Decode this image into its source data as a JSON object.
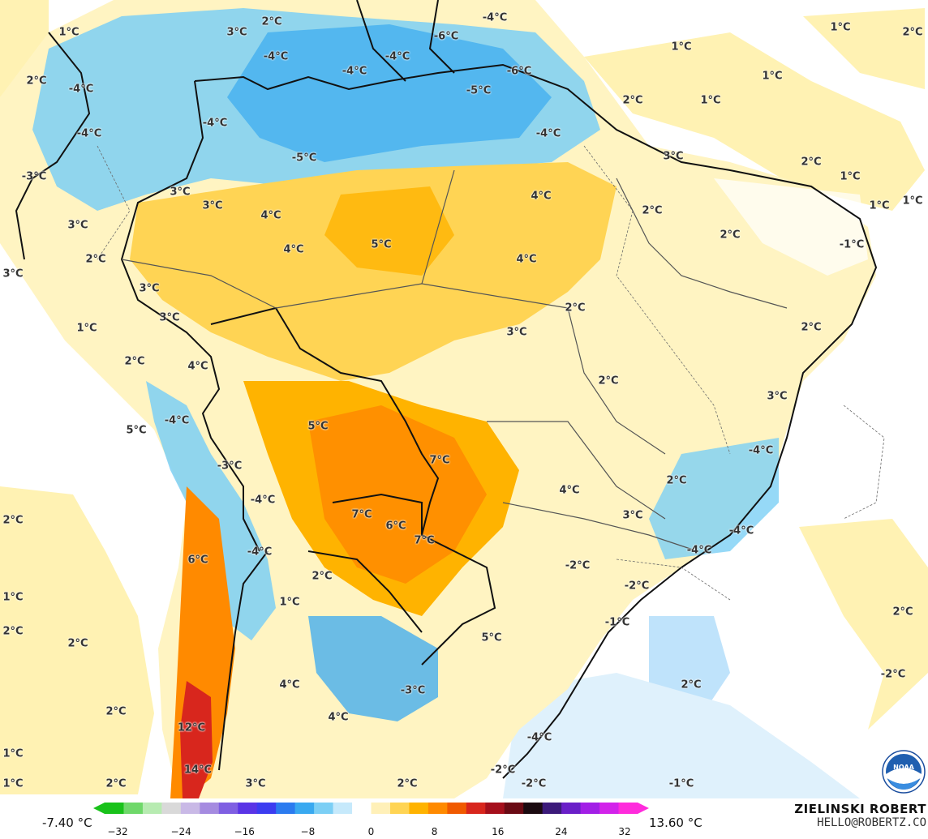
{
  "map": {
    "labels": [
      {
        "text": "1°C"
      },
      {
        "text": "2°C"
      },
      {
        "text": "3°C"
      },
      {
        "text": "-4°C"
      },
      {
        "text": "-4°C"
      },
      {
        "text": "-6°C"
      },
      {
        "text": "-4°C"
      },
      {
        "text": "-4°C"
      },
      {
        "text": "-5°C"
      },
      {
        "text": "-6°C"
      },
      {
        "text": "1°C"
      },
      {
        "text": "1°C"
      },
      {
        "text": "2°C"
      },
      {
        "text": "2°C"
      },
      {
        "text": "-4°C"
      },
      {
        "text": "-4°C"
      },
      {
        "text": "2°C"
      },
      {
        "text": "1°C"
      },
      {
        "text": "1°C"
      },
      {
        "text": "-4°C"
      },
      {
        "text": "-4°C"
      },
      {
        "text": "-5°C"
      },
      {
        "text": "2°C"
      },
      {
        "text": "-3°C"
      },
      {
        "text": "3°C"
      },
      {
        "text": "3°C"
      },
      {
        "text": "3°C"
      },
      {
        "text": "4°C"
      },
      {
        "text": "4°C"
      },
      {
        "text": "2°C"
      },
      {
        "text": "1°C"
      },
      {
        "text": "1°C"
      },
      {
        "text": "1°C"
      },
      {
        "text": "3°C"
      },
      {
        "text": "2°C"
      },
      {
        "text": "4°C"
      },
      {
        "text": "5°C"
      },
      {
        "text": "4°C"
      },
      {
        "text": "2°C"
      },
      {
        "text": "-1°C"
      },
      {
        "text": "3°C"
      },
      {
        "text": "3°C"
      },
      {
        "text": "3°C"
      },
      {
        "text": "2°C"
      },
      {
        "text": "1°C"
      },
      {
        "text": "3°C"
      },
      {
        "text": "2°C"
      },
      {
        "text": "4°C"
      },
      {
        "text": "2°C"
      },
      {
        "text": "2°C"
      },
      {
        "text": "3°C"
      },
      {
        "text": "5°C"
      },
      {
        "text": "-4°C"
      },
      {
        "text": "5°C"
      },
      {
        "text": "-4°C"
      },
      {
        "text": "7°C"
      },
      {
        "text": "-3°C"
      },
      {
        "text": "2°C"
      },
      {
        "text": "4°C"
      },
      {
        "text": "-4°C"
      },
      {
        "text": "7°C"
      },
      {
        "text": "6°C"
      },
      {
        "text": "7°C"
      },
      {
        "text": "3°C"
      },
      {
        "text": "-4°C"
      },
      {
        "text": "2°C"
      },
      {
        "text": "6°C"
      },
      {
        "text": "-4°C"
      },
      {
        "text": "-4°C"
      },
      {
        "text": "-2°C"
      },
      {
        "text": "1°C"
      },
      {
        "text": "2°C"
      },
      {
        "text": "-2°C"
      },
      {
        "text": "2°C"
      },
      {
        "text": "1°C"
      },
      {
        "text": "-1°C"
      },
      {
        "text": "2°C"
      },
      {
        "text": "5°C"
      },
      {
        "text": "2°C"
      },
      {
        "text": "-2°C"
      },
      {
        "text": "-3°C"
      },
      {
        "text": "4°C"
      },
      {
        "text": "2°C"
      },
      {
        "text": "4°C"
      },
      {
        "text": "12°C"
      },
      {
        "text": "-4°C"
      },
      {
        "text": "2°C"
      },
      {
        "text": "1°C"
      },
      {
        "text": "14°C"
      },
      {
        "text": "-2°C"
      },
      {
        "text": "-2°C"
      },
      {
        "text": "1°C"
      },
      {
        "text": "2°C"
      },
      {
        "text": "3°C"
      },
      {
        "text": "2°C"
      },
      {
        "text": "-1°C"
      }
    ]
  },
  "legend": {
    "min_label": "-7.40 °C",
    "max_label": "13.60 °C",
    "ticks": [
      "−32",
      "−24",
      "−16",
      "−8",
      "0",
      "8",
      "16",
      "24",
      "32"
    ],
    "scale_colors": [
      "#19c21a",
      "#6fd86a",
      "#b7ebb1",
      "#d9d9d9",
      "#c9b9e6",
      "#a58be0",
      "#7f5fe2",
      "#5a34e6",
      "#3c3cf0",
      "#2b7bef",
      "#39a9f0",
      "#7ccff5",
      "#c6e9fb",
      "#ffffff",
      "#fff0b8",
      "#ffd454",
      "#ffb300",
      "#ff8a00",
      "#f05a00",
      "#d8261d",
      "#a50f1c",
      "#6a0a14",
      "#1b0a10",
      "#3c1a7a",
      "#6a1fc8",
      "#a21fe6",
      "#d223ea",
      "#ff2bdc"
    ]
  },
  "branding": {
    "name": "ZIELINSKI ROBERT",
    "email": "HELLO@ROBERTZ.CO",
    "logo_text": "NOAA"
  }
}
